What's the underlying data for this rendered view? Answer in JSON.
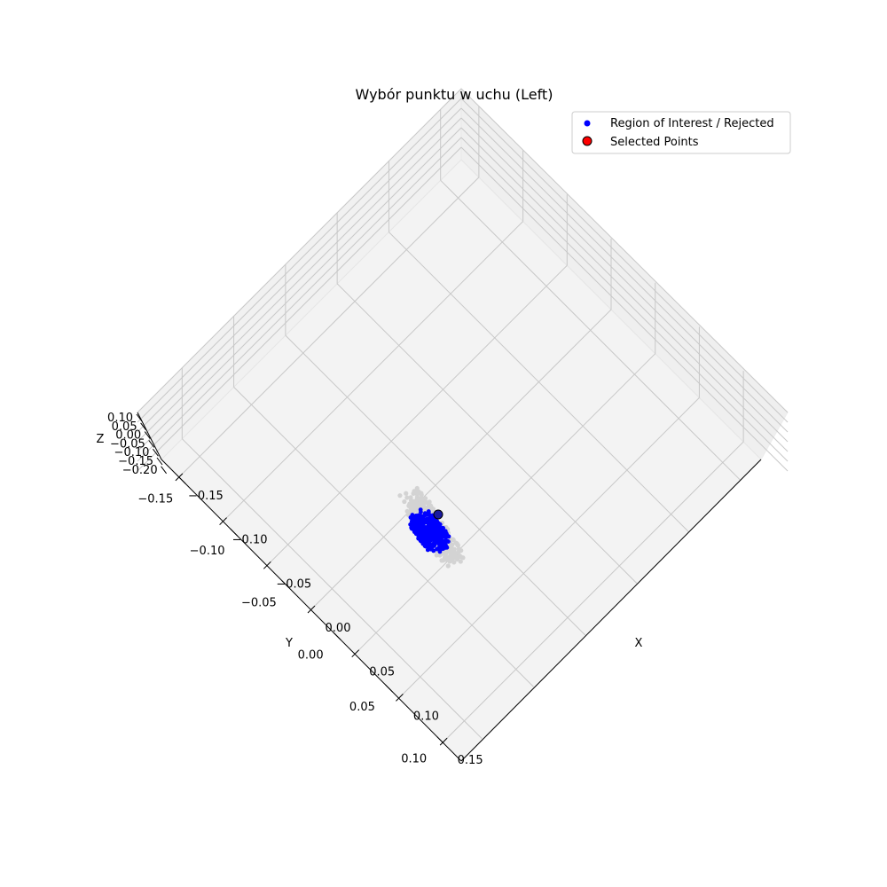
{
  "chart_data": {
    "type": "scatter",
    "projection": "3d",
    "title": "Wybór punktu w uchu (Left)",
    "xlabel": "X",
    "ylabel": "Y",
    "zlabel": "Z",
    "xlim": [
      -0.17,
      0.17
    ],
    "ylim": [
      -0.17,
      0.12
    ],
    "zlim": [
      -0.2,
      0.1
    ],
    "x_ticks": [
      "−0.15",
      "−0.10",
      "−0.05",
      "0.00",
      "0.05",
      "0.10",
      "0.15"
    ],
    "y_ticks": [
      "−0.15",
      "−0.10",
      "−0.05",
      "0.00",
      "0.05",
      "0.10"
    ],
    "z_ticks": [
      "0.10",
      "0.05",
      "0.00",
      "−0.05",
      "−0.10",
      "−0.15",
      "−0.20"
    ],
    "grid": true,
    "legend_position": "top-right",
    "series": [
      {
        "name": "Region of Interest / Rejected",
        "color": "#0000ff",
        "marker": "circle",
        "x_range": [
          -0.035,
          -0.005
        ],
        "y_range": [
          -0.065,
          -0.04
        ],
        "approx_points": 900
      },
      {
        "name": "Selected Points",
        "color": "#ff0000",
        "edge_color": "#000000",
        "marker": "circle",
        "x": [
          -0.04
        ],
        "y": [
          -0.045
        ]
      }
    ],
    "background_cloud": {
      "color": "#d3d3d3",
      "x_range": [
        -0.05,
        0.01
      ],
      "y_range": [
        -0.08,
        -0.02
      ]
    }
  },
  "colors": {
    "pane": "#f2f2f2",
    "grid": "#c8c8c8",
    "axis": "#000000"
  }
}
